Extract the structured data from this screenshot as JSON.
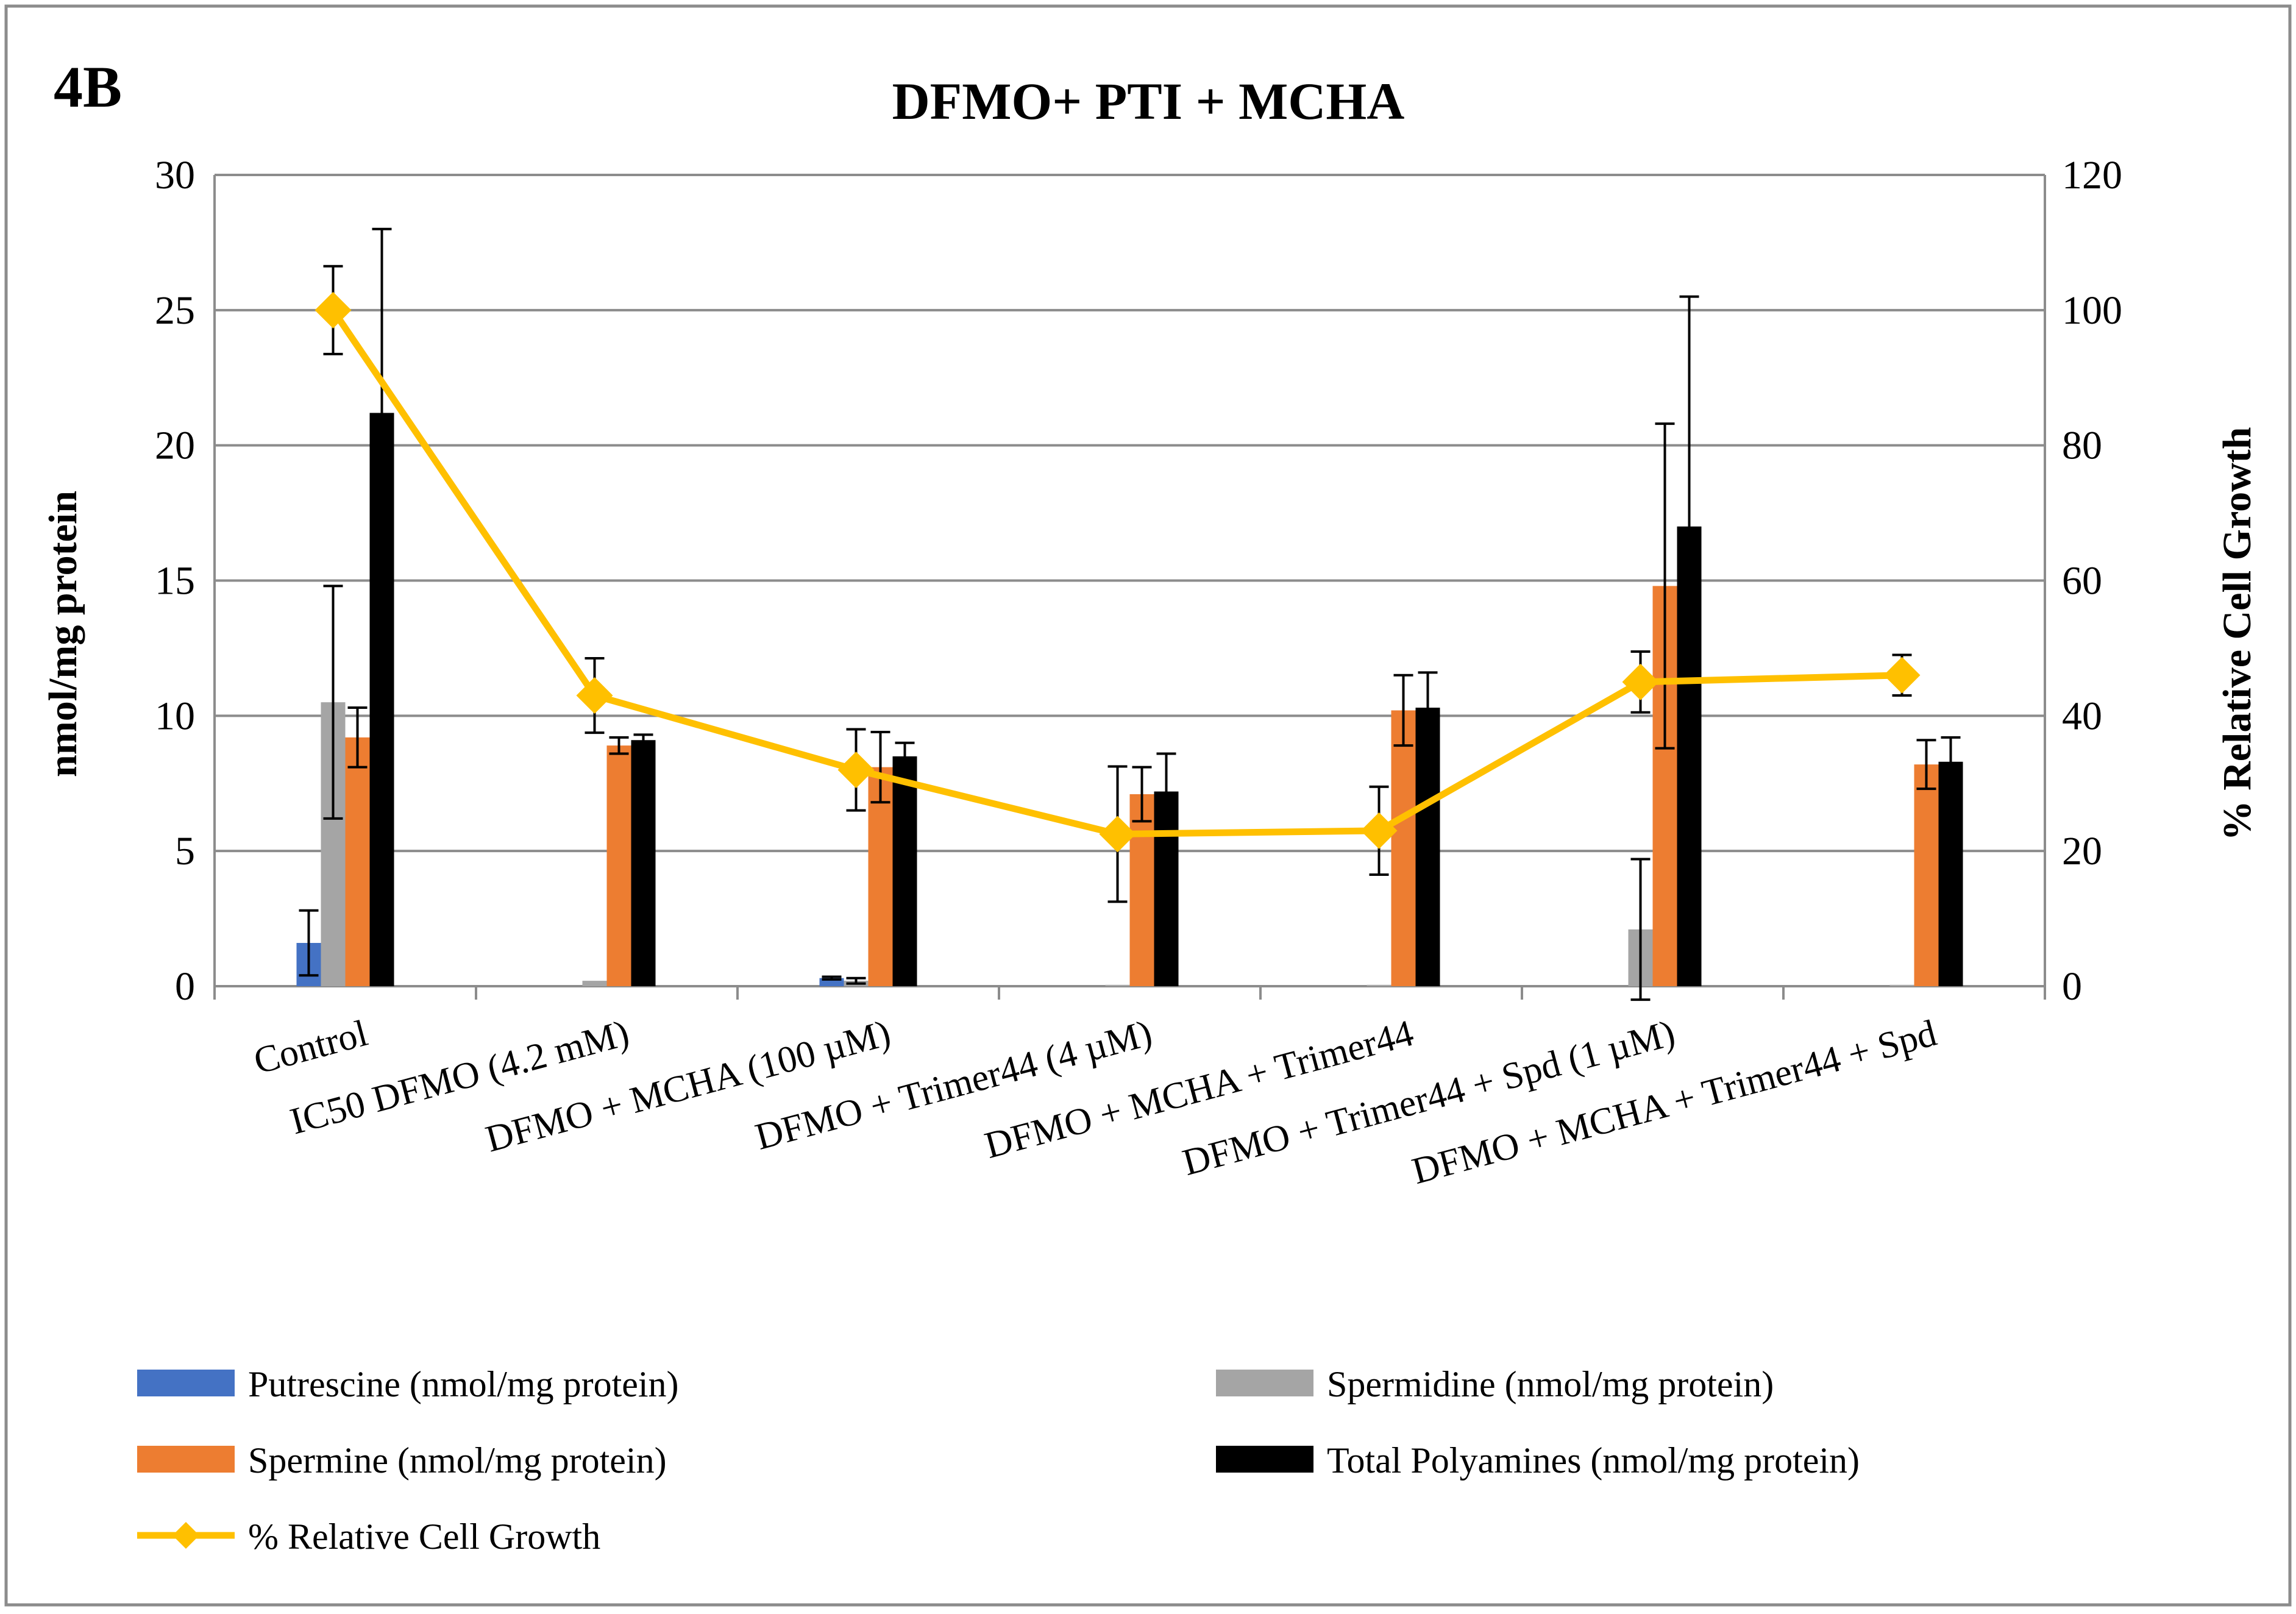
{
  "panel_label": "4B",
  "chart_data": {
    "type": "bar",
    "title": "DFMO+ PTI + MCHA",
    "categories": [
      "Control",
      "IC50 DFMO (4.2 mM)",
      "DFMO + MCHA (100 µM)",
      "DFMO + Trimer44 (4 µM)",
      "DFMO + MCHA + Trimer44",
      "DFMO +  Trimer44 + Spd (1 µM)",
      "DFMO +  MCHA + Trimer44 + Spd"
    ],
    "ylabel": "nmol/mg protein",
    "ylim": [
      0,
      30
    ],
    "yticks": [
      0,
      5,
      10,
      15,
      20,
      25,
      30
    ],
    "y2label": "% Relative Cell Growth",
    "y2lim": [
      0,
      120
    ],
    "y2ticks": [
      0,
      20,
      40,
      60,
      80,
      100,
      120
    ],
    "grid": true,
    "legend_position": "bottom",
    "series": [
      {
        "name": "Putrescine (nmol/mg protein)",
        "kind": "bar",
        "color": "#4472C4",
        "values": [
          1.6,
          0,
          0.3,
          0,
          0,
          0,
          0
        ],
        "errors": [
          1.2,
          0,
          0.05,
          0,
          0,
          0,
          0
        ]
      },
      {
        "name": "Spermidine (nmol/mg protein)",
        "kind": "bar",
        "color": "#A5A5A5",
        "values": [
          10.5,
          0.2,
          0.2,
          0.05,
          0.05,
          2.1,
          0.05
        ],
        "errors": [
          4.3,
          0,
          0.1,
          0,
          0,
          2.6,
          0
        ]
      },
      {
        "name": "Spermine (nmol/mg protein)",
        "kind": "bar",
        "color": "#ED7D31",
        "values": [
          9.2,
          8.9,
          8.1,
          7.1,
          10.2,
          14.8,
          8.2
        ],
        "errors": [
          1.1,
          0.3,
          1.3,
          1.0,
          1.3,
          6.0,
          0.9
        ]
      },
      {
        "name": "Total Polyamines (nmol/mg protein)",
        "kind": "bar",
        "color": "#000000",
        "values": [
          21.2,
          9.1,
          8.5,
          7.2,
          10.3,
          17.0,
          8.3
        ],
        "errors": [
          6.8,
          0.2,
          0.5,
          1.4,
          1.3,
          8.5,
          0.9
        ]
      },
      {
        "name": "% Relative Cell Growth",
        "kind": "line",
        "axis": "right",
        "color": "#FFC000",
        "values": [
          100,
          43,
          32,
          22.5,
          23,
          45,
          46
        ],
        "errors": [
          6.5,
          5.5,
          6.0,
          10,
          6.5,
          4.5,
          3.0
        ]
      }
    ]
  }
}
